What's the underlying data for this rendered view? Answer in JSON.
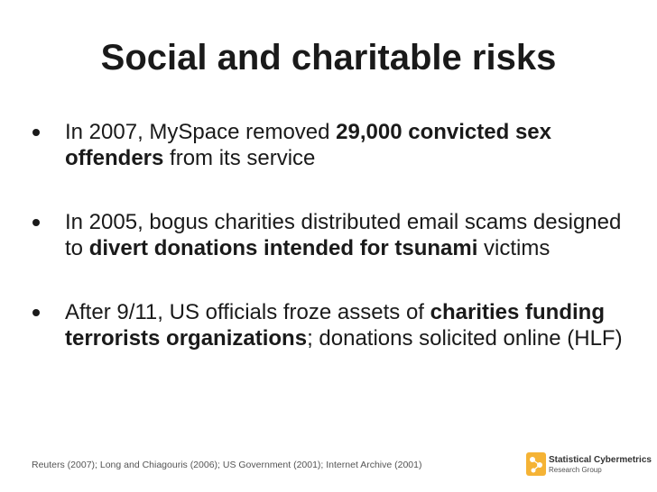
{
  "title": "Social and charitable risks",
  "bullets": [
    {
      "segments": [
        {
          "text": "In 2007, MySpace removed ",
          "bold": false
        },
        {
          "text": "29,000 convicted sex offenders",
          "bold": true
        },
        {
          "text": " from its service",
          "bold": false
        }
      ]
    },
    {
      "segments": [
        {
          "text": "In 2005, bogus charities distributed email scams designed to ",
          "bold": false
        },
        {
          "text": "divert donations intended for tsunami",
          "bold": true
        },
        {
          "text": " victims",
          "bold": false
        }
      ]
    },
    {
      "segments": [
        {
          "text": "After 9/11, US officials froze assets of ",
          "bold": false
        },
        {
          "text": "charities funding terrorists organizations",
          "bold": true
        },
        {
          "text": "; donations solicited online (HLF)",
          "bold": false
        }
      ]
    }
  ],
  "footer": "Reuters (2007); Long and Chiagouris (2006); US Government (2001); Internet Archive (2001)",
  "logo": {
    "name": "Statistical Cybermetrics",
    "subtitle": "Research Group"
  }
}
